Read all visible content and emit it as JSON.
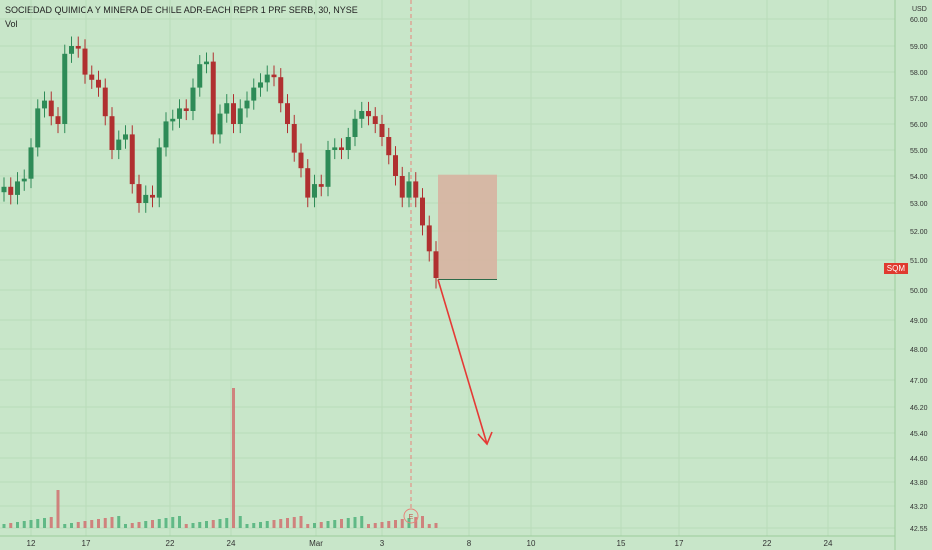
{
  "chart_data": {
    "type": "candlestick",
    "title": "SOCIEDAD QUIMICA Y MINERA DE CHILE ADR-EACH REPR 1 PRF SERB, 30, NYSE",
    "volume_label": "Vol",
    "currency": "USD",
    "symbol": "SQM",
    "last_price": 50.4,
    "ylim": [
      42.55,
      60.35
    ],
    "y_ticks": [
      "60.00",
      "59.00",
      "58.00",
      "57.00",
      "56.00",
      "55.00",
      "54.00",
      "53.00",
      "52.00",
      "51.00",
      "50.00",
      "49.00",
      "48.00",
      "47.00",
      "46.20",
      "45.40",
      "44.60",
      "43.80",
      "43.20",
      "42.55"
    ],
    "x_ticks": [
      "12",
      "17",
      "22",
      "24",
      "Mar",
      "3",
      "8",
      "10",
      "15",
      "17",
      "22",
      "24"
    ],
    "earnings_marker": "E",
    "colors": {
      "background": "#c8e6c9",
      "up": "#2e8b57",
      "down": "#b03030",
      "projection_arrow": "#e53935",
      "target_box": "#d7b3a1",
      "badge": "#e03a2f"
    },
    "series": [
      {
        "name": "price",
        "values": [
          53.6,
          53.3,
          53.8,
          53.9,
          55.1,
          56.6,
          56.9,
          56.3,
          56.0,
          58.7,
          59.0,
          58.9,
          57.9,
          57.7,
          57.4,
          56.3,
          55.0,
          55.4,
          55.6,
          53.7,
          53.0,
          53.3,
          53.2,
          55.1,
          56.1,
          56.2,
          56.6,
          56.5,
          57.4,
          58.3,
          58.4,
          55.6,
          56.4,
          56.8,
          56.0,
          56.6,
          56.9,
          57.4,
          57.6,
          57.9,
          57.8,
          56.8,
          56.0,
          54.9,
          54.3,
          53.2,
          53.7,
          53.6,
          55.0,
          55.1,
          55.0,
          55.5,
          56.2,
          56.5,
          56.3,
          56.0,
          55.5,
          54.8,
          54.0,
          53.2,
          53.8,
          53.2,
          52.2,
          51.3,
          50.4
        ]
      }
    ]
  }
}
